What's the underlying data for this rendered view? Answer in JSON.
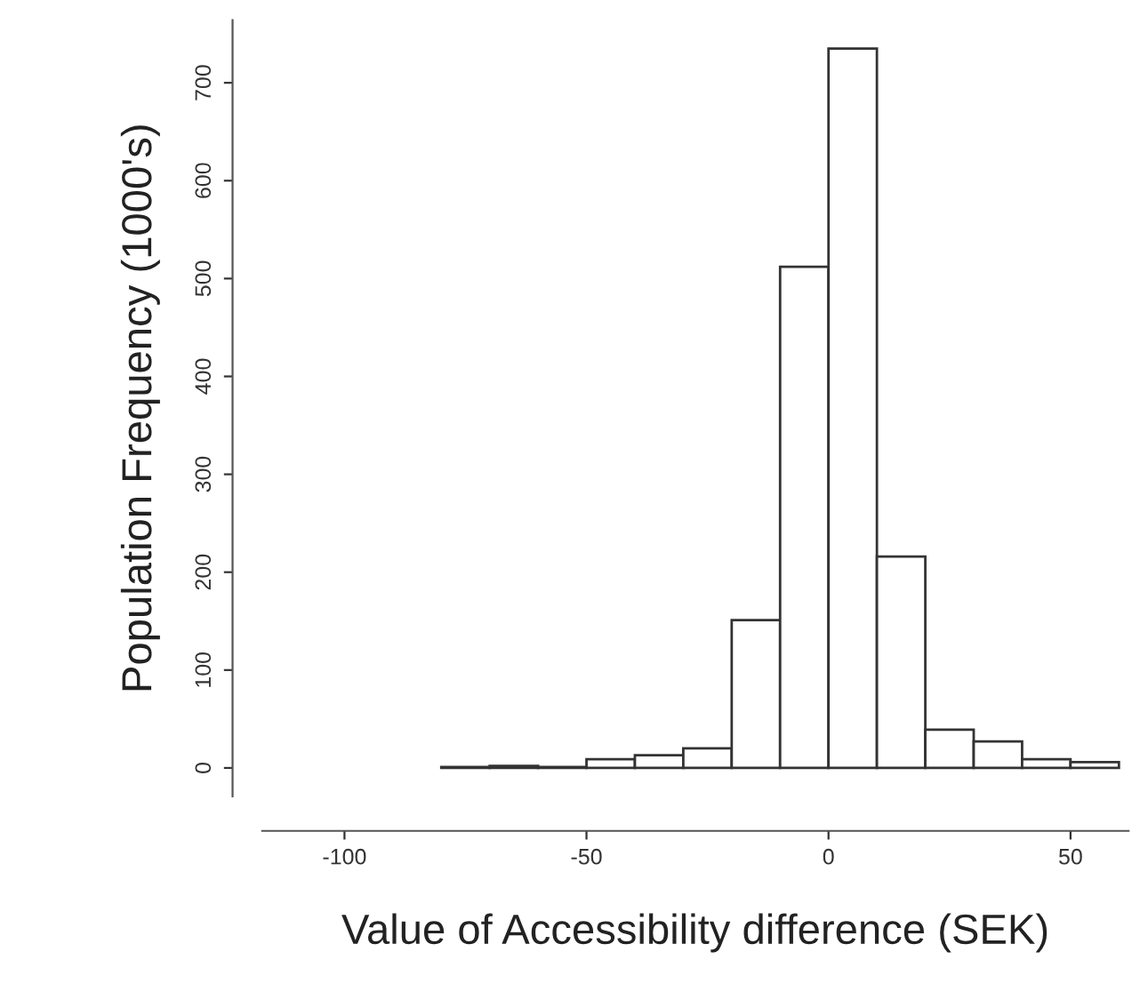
{
  "chart_data": {
    "type": "histogram",
    "xlabel": "Value of Accessibility difference (SEK)",
    "ylabel": "Population Frequency (1000's)",
    "bins": [
      -110,
      -100,
      -90,
      -80,
      -70,
      -60,
      -50,
      -40,
      -30,
      -20,
      -10,
      0,
      10,
      20,
      30,
      40,
      50,
      60
    ],
    "values": [
      0,
      0,
      0,
      1,
      2,
      1,
      9,
      13,
      20,
      151,
      512,
      735,
      216,
      39,
      27,
      9,
      6
    ],
    "color": "#ffffff",
    "xlim": [
      -117,
      62
    ],
    "xticks": [
      -100,
      -50,
      0,
      50
    ],
    "ylim": [
      -29,
      764
    ],
    "yticks": [
      0,
      100,
      200,
      300,
      400,
      500,
      600,
      700
    ],
    "grid": false
  }
}
